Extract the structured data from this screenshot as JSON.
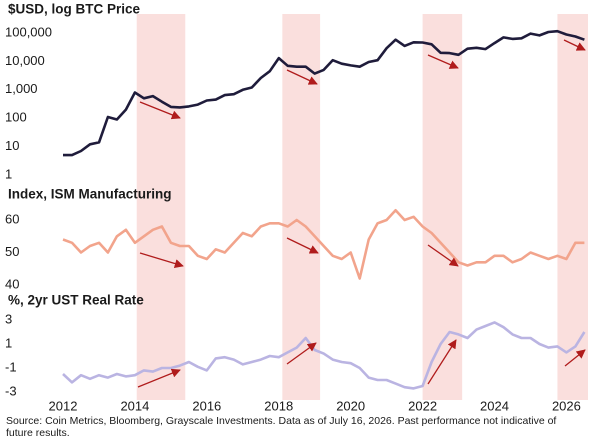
{
  "chart_data": [
    {
      "type": "line",
      "title": "$USD, log BTC Price",
      "log_y": true,
      "color": "#1f1c3b",
      "x": [
        2012,
        2012.25,
        2012.5,
        2012.75,
        2013,
        2013.25,
        2013.5,
        2013.75,
        2014,
        2014.25,
        2014.5,
        2014.75,
        2015,
        2015.25,
        2015.5,
        2015.75,
        2016,
        2016.25,
        2016.5,
        2016.75,
        2017,
        2017.25,
        2017.5,
        2017.75,
        2018,
        2018.25,
        2018.5,
        2018.75,
        2019,
        2019.25,
        2019.5,
        2019.75,
        2020,
        2020.25,
        2020.5,
        2020.75,
        2021,
        2021.25,
        2021.5,
        2021.75,
        2022,
        2022.25,
        2022.5,
        2022.75,
        2023,
        2023.25,
        2023.5,
        2023.75,
        2024,
        2024.25,
        2024.5,
        2024.75,
        2025,
        2025.25,
        2025.5,
        2025.75,
        2026,
        2026.25,
        2026.5
      ],
      "values": [
        5,
        5,
        7,
        12,
        14,
        110,
        90,
        200,
        800,
        500,
        600,
        380,
        250,
        240,
        260,
        300,
        420,
        450,
        650,
        700,
        1000,
        1200,
        2600,
        4500,
        13000,
        7000,
        6500,
        6500,
        3700,
        5000,
        11000,
        8300,
        7200,
        6500,
        9500,
        11000,
        29000,
        58000,
        35000,
        47000,
        46000,
        40000,
        20000,
        19500,
        17000,
        28000,
        30000,
        27000,
        44000,
        70000,
        62000,
        65000,
        95000,
        82000,
        108000,
        115000,
        88000,
        75000,
        58000
      ],
      "xlim": [
        2012,
        2026.6
      ],
      "ylim": [
        1,
        300000
      ],
      "yticks": [
        {
          "value": 100000,
          "label": "100,000"
        },
        {
          "value": 10000,
          "label": "10,000"
        },
        {
          "value": 1000,
          "label": "1,000"
        },
        100,
        10,
        1
      ],
      "shaded_periods": [
        {
          "start": 2014.05,
          "end": 2015.4
        },
        {
          "start": 2018.1,
          "end": 2019.15
        },
        {
          "start": 2022.0,
          "end": 2023.1
        },
        {
          "start": 2025.75,
          "end": 2026.6
        }
      ]
    },
    {
      "type": "line",
      "title": "Index, ISM Manufacturing",
      "color": "#f2a48c",
      "x": [
        2012,
        2012.25,
        2012.5,
        2012.75,
        2013,
        2013.25,
        2013.5,
        2013.75,
        2014,
        2014.25,
        2014.5,
        2014.75,
        2015,
        2015.25,
        2015.5,
        2015.75,
        2016,
        2016.25,
        2016.5,
        2016.75,
        2017,
        2017.25,
        2017.5,
        2017.75,
        2018,
        2018.25,
        2018.5,
        2018.75,
        2019,
        2019.25,
        2019.5,
        2019.75,
        2020,
        2020.25,
        2020.5,
        2020.75,
        2021,
        2021.25,
        2021.5,
        2021.75,
        2022,
        2022.25,
        2022.5,
        2022.75,
        2023,
        2023.25,
        2023.5,
        2023.75,
        2024,
        2024.25,
        2024.5,
        2024.75,
        2025,
        2025.25,
        2025.5,
        2025.75,
        2026,
        2026.25,
        2026.5
      ],
      "values": [
        54,
        53,
        50,
        52,
        53,
        50,
        55,
        57,
        53,
        55,
        57,
        58,
        53,
        52,
        52,
        49,
        48,
        51,
        50,
        53,
        56,
        55,
        58,
        59,
        59,
        58,
        60,
        58,
        55,
        52,
        49,
        48,
        50,
        42,
        54,
        59,
        60,
        63,
        60,
        61,
        58,
        56,
        53,
        50,
        47,
        46,
        47,
        47,
        49,
        49,
        47,
        48,
        50,
        49,
        48,
        49,
        48,
        53,
        53
      ],
      "xlim": [
        2012,
        2026.6
      ],
      "ylim": [
        38,
        66
      ],
      "yticks": [
        60,
        50,
        40
      ]
    },
    {
      "type": "line",
      "title": "%, 2yr UST Real Rate",
      "color": "#bab4e2",
      "x": [
        2012,
        2012.25,
        2012.5,
        2012.75,
        2013,
        2013.25,
        2013.5,
        2013.75,
        2014,
        2014.25,
        2014.5,
        2014.75,
        2015,
        2015.25,
        2015.5,
        2015.75,
        2016,
        2016.25,
        2016.5,
        2016.75,
        2017,
        2017.25,
        2017.5,
        2017.75,
        2018,
        2018.25,
        2018.5,
        2018.75,
        2019,
        2019.25,
        2019.5,
        2019.75,
        2020,
        2020.25,
        2020.5,
        2020.75,
        2021,
        2021.25,
        2021.5,
        2021.75,
        2022,
        2022.25,
        2022.5,
        2022.75,
        2023,
        2023.25,
        2023.5,
        2023.75,
        2024,
        2024.25,
        2024.5,
        2024.75,
        2025,
        2025.25,
        2025.5,
        2025.75,
        2026,
        2026.25,
        2026.5
      ],
      "values": [
        -1.5,
        -2.2,
        -1.6,
        -1.9,
        -1.6,
        -1.8,
        -1.5,
        -1.7,
        -1.6,
        -1.2,
        -1.3,
        -1.0,
        -1.0,
        -0.8,
        -0.5,
        -0.9,
        -1.2,
        -0.2,
        -0.1,
        -0.3,
        -0.7,
        -0.5,
        -0.3,
        0.0,
        -0.1,
        0.3,
        0.7,
        1.5,
        0.5,
        0.2,
        -0.3,
        -0.5,
        -0.6,
        -1.0,
        -1.8,
        -2.0,
        -2.0,
        -2.3,
        -2.6,
        -2.7,
        -2.5,
        -0.5,
        1.0,
        2.0,
        1.8,
        1.5,
        2.2,
        2.5,
        2.8,
        2.4,
        1.8,
        1.5,
        1.5,
        1.0,
        0.7,
        0.8,
        0.3,
        0.8,
        2.0
      ],
      "xlim": [
        2012,
        2026.6
      ],
      "ylim": [
        -3.5,
        3.5
      ],
      "yticks": [
        3,
        1,
        -1,
        -3
      ],
      "xticks": [
        2012,
        2014,
        2016,
        2018,
        2020,
        2022,
        2024,
        2026
      ]
    }
  ],
  "source_lines": [
    "Source: Coin Metrics, Bloomberg, Grayscale Investments. Data as of July 16, 2026. Past performance not indicative of",
    "future results."
  ]
}
